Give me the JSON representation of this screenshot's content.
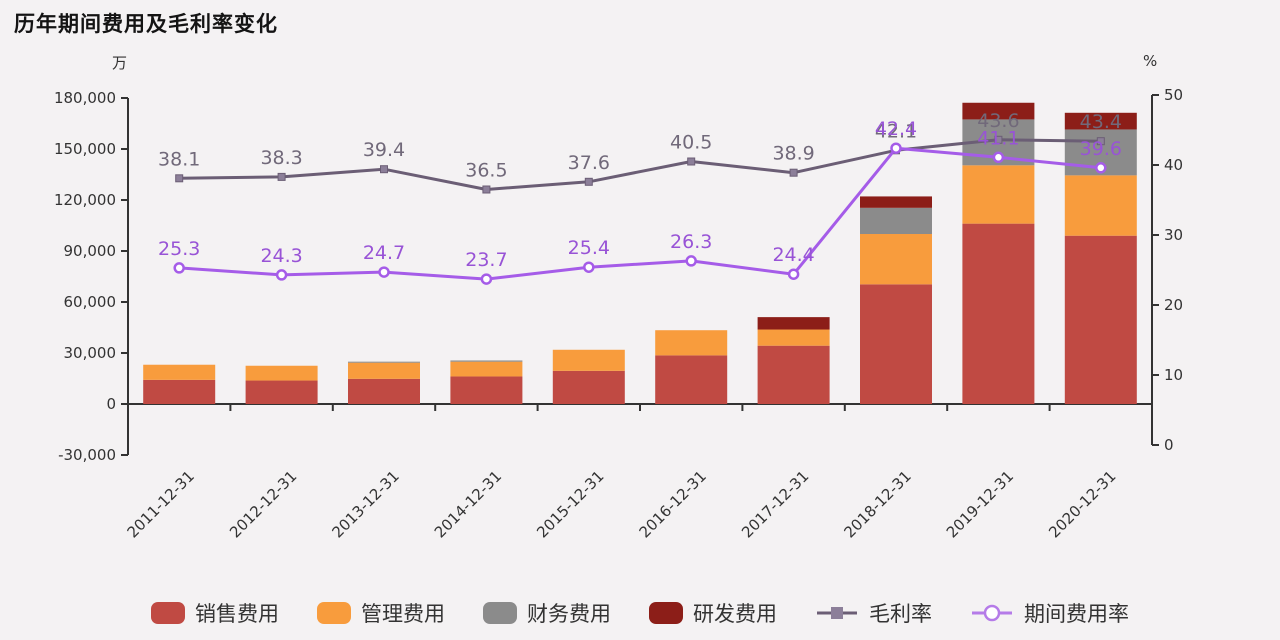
{
  "title": "历年期间费用及毛利率变化",
  "left_axis": {
    "unit": "万",
    "tick_labels": [
      "180,000",
      "150,000",
      "120,000",
      "90,000",
      "60,000",
      "30,000",
      "0",
      "-30,000"
    ],
    "tick_values": [
      180000,
      150000,
      120000,
      90000,
      60000,
      30000,
      0,
      -30000
    ]
  },
  "right_axis": {
    "unit": "%",
    "tick_values": [
      50,
      40,
      30,
      20,
      10,
      0
    ]
  },
  "colors": {
    "background": "#f4f2f3",
    "axis": "#333333",
    "tick_text": "#333333",
    "sales": "#c04a43",
    "management": "#f89c3d",
    "finance": "#8b8b8b",
    "rnd": "#8c1e18",
    "gross_margin_line": "#6b5e75",
    "gross_margin_marker": "#8c7f99",
    "gross_margin_label": "#71697a",
    "period_ratio_line": "#a55ce8",
    "period_ratio_label": "#9853d6"
  },
  "chart_data": {
    "type": "bar",
    "subtype": "stacked-bar-with-lines",
    "title": "历年期间费用及毛利率变化",
    "ylabel_left": "万",
    "ylabel_right": "%",
    "ylim_left": [
      -30000,
      180000
    ],
    "ylim_right": [
      0,
      50
    ],
    "grid": false,
    "legend_position": "bottom",
    "categories": [
      "2011-12-31",
      "2012-12-31",
      "2013-12-31",
      "2014-12-31",
      "2015-12-31",
      "2016-12-31",
      "2017-12-31",
      "2018-12-31",
      "2019-12-31",
      "2020-12-31"
    ],
    "series": [
      {
        "name": "销售费用",
        "type": "bar",
        "stack": true,
        "axis": "left",
        "color": "#c04a43",
        "values": [
          14200,
          13800,
          14800,
          16200,
          19500,
          28600,
          34300,
          70400,
          106100,
          99000
        ]
      },
      {
        "name": "管理费用",
        "type": "bar",
        "stack": true,
        "axis": "left",
        "color": "#f89c3d",
        "values": [
          8900,
          8700,
          9500,
          8700,
          12400,
          14800,
          9500,
          29600,
          34300,
          35500
        ]
      },
      {
        "name": "财务费用",
        "type": "bar",
        "stack": true,
        "axis": "left",
        "color": "#8b8b8b",
        "values": [
          0,
          0,
          600,
          700,
          0,
          0,
          0,
          15400,
          27000,
          27000
        ]
      },
      {
        "name": "研发费用",
        "type": "bar",
        "stack": true,
        "axis": "left",
        "color": "#8c1e18",
        "values": [
          0,
          0,
          0,
          0,
          0,
          0,
          7300,
          6700,
          9800,
          9800
        ]
      },
      {
        "name": "毛利率",
        "type": "line",
        "axis": "right",
        "color": "#6b5e75",
        "marker": "square",
        "values": [
          38.1,
          38.3,
          39.4,
          36.5,
          37.6,
          40.5,
          38.9,
          42.1,
          43.6,
          43.4
        ]
      },
      {
        "name": "期间费用率",
        "type": "line",
        "axis": "right",
        "color": "#a55ce8",
        "marker": "circle-open",
        "values": [
          25.3,
          24.3,
          24.7,
          23.7,
          25.4,
          26.3,
          24.4,
          42.4,
          41.1,
          39.6
        ]
      }
    ]
  },
  "legend": {
    "items": [
      {
        "label": "销售费用"
      },
      {
        "label": "管理费用"
      },
      {
        "label": "财务费用"
      },
      {
        "label": "研发费用"
      },
      {
        "label": "毛利率"
      },
      {
        "label": "期间费用率"
      }
    ]
  }
}
